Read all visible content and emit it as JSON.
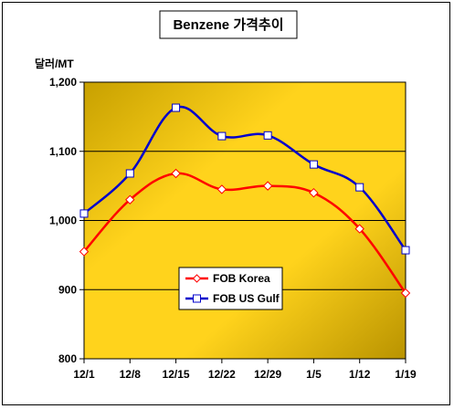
{
  "chart_data": {
    "type": "line",
    "title": "Benzene 가격추이",
    "ylabel": "달러/MT",
    "xlabel": "",
    "categories": [
      "12/1",
      "12/8",
      "12/15",
      "12/22",
      "12/29",
      "1/5",
      "1/12",
      "1/19"
    ],
    "ylim": [
      800,
      1200
    ],
    "yticks": [
      800,
      900,
      1000,
      1100,
      1200
    ],
    "ytick_labels": [
      "800",
      "900",
      "1,000",
      "1,100",
      "1,200"
    ],
    "grid": true,
    "legend_position": "bottom-left",
    "series": [
      {
        "name": "FOB Korea",
        "color": "#ff0000",
        "marker": "diamond",
        "values": [
          955,
          1030,
          1068,
          1045,
          1050,
          1040,
          988,
          895
        ]
      },
      {
        "name": "FOB US Gulf",
        "color": "#0000cc",
        "marker": "square",
        "values": [
          1010,
          1068,
          1163,
          1122,
          1123,
          1081,
          1048,
          957
        ]
      }
    ],
    "colors": {
      "plot_gradient_light": "#ffd21a",
      "plot_gradient_dark": "#c9a200",
      "gridline": "#000000"
    }
  }
}
